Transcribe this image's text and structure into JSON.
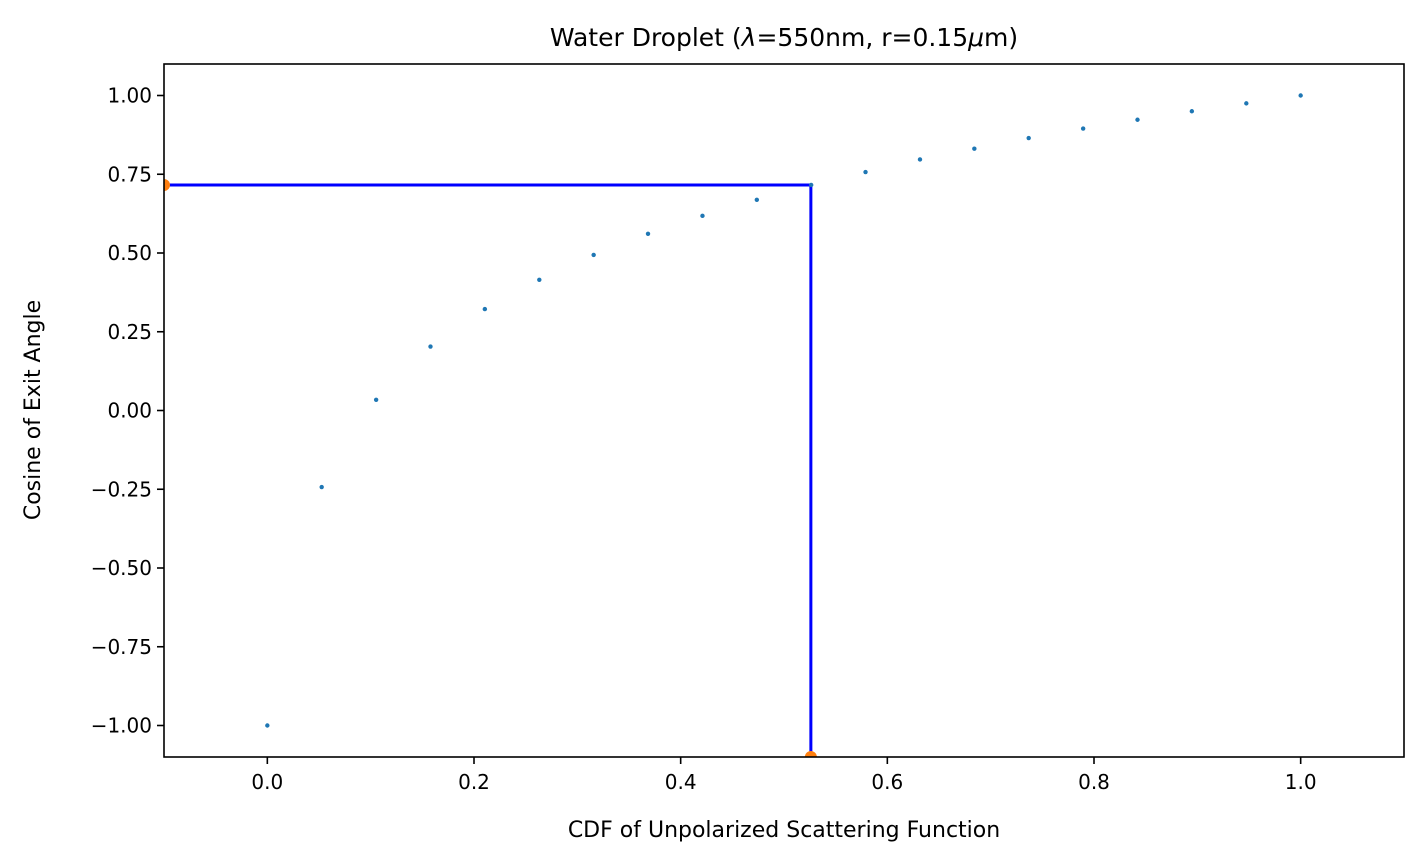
{
  "chart_data": {
    "type": "scatter",
    "title_parts": [
      "Water Droplet (",
      "λ",
      "=550nm, r=0.15",
      "μ",
      "m)"
    ],
    "xlabel": "CDF of Unpolarized Scattering Function",
    "ylabel": "Cosine of Exit Angle",
    "xlim": [
      -0.1,
      1.1
    ],
    "ylim": [
      -1.1,
      1.1
    ],
    "xticks": [
      0.0,
      0.2,
      0.4,
      0.6,
      0.8,
      1.0
    ],
    "xtick_labels": [
      "0.0",
      "0.2",
      "0.4",
      "0.6",
      "0.8",
      "1.0"
    ],
    "yticks": [
      -1.0,
      -0.75,
      -0.5,
      -0.25,
      0.0,
      0.25,
      0.5,
      0.75,
      1.0
    ],
    "ytick_labels": [
      "−1.00",
      "−0.75",
      "−0.50",
      "−0.25",
      "0.00",
      "0.25",
      "0.50",
      "0.75",
      "1.00"
    ],
    "grid": false,
    "series": [
      {
        "color": "#1f77b4",
        "points": [
          [
            0.0,
            -1.0
          ],
          [
            0.0526,
            -0.243
          ],
          [
            0.1053,
            0.034
          ],
          [
            0.1579,
            0.203
          ],
          [
            0.2105,
            0.322
          ],
          [
            0.2632,
            0.415
          ],
          [
            0.3158,
            0.494
          ],
          [
            0.3684,
            0.561
          ],
          [
            0.4211,
            0.618
          ],
          [
            0.4737,
            0.669
          ],
          [
            0.5263,
            0.716
          ],
          [
            0.5789,
            0.757
          ],
          [
            0.6316,
            0.797
          ],
          [
            0.6842,
            0.831
          ],
          [
            0.7368,
            0.865
          ],
          [
            0.7895,
            0.895
          ],
          [
            0.8421,
            0.923
          ],
          [
            0.8947,
            0.95
          ],
          [
            0.9474,
            0.975
          ],
          [
            1.0,
            1.0
          ]
        ]
      }
    ],
    "guide": {
      "color": "#0000ff",
      "x": 0.526,
      "y": 0.716
    },
    "markers": {
      "color": "#ff7f0e",
      "points": [
        [
          -0.1,
          0.716
        ],
        [
          0.526,
          -1.1
        ]
      ]
    }
  }
}
